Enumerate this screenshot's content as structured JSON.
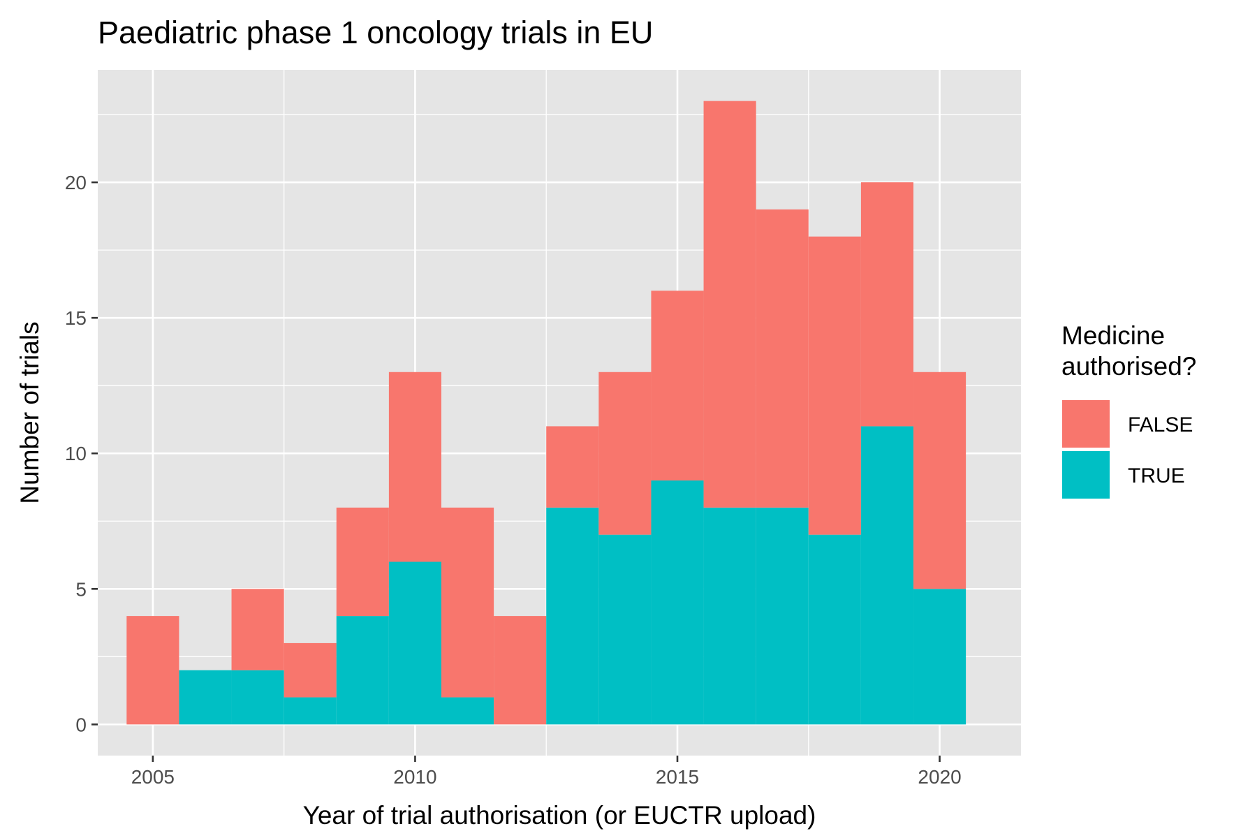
{
  "chart_data": {
    "type": "bar",
    "stacked": true,
    "title": "Paediatric phase 1 oncology trials in EU",
    "xlabel": "Year of trial authorisation (or EUCTR upload)",
    "ylabel": "Number of trials",
    "x": [
      2005,
      2006,
      2007,
      2008,
      2009,
      2010,
      2011,
      2012,
      2013,
      2014,
      2015,
      2016,
      2017,
      2018,
      2019,
      2020
    ],
    "series": [
      {
        "name": "FALSE",
        "color": "#F8766D",
        "values": [
          4,
          0,
          3,
          2,
          4,
          7,
          7,
          4,
          3,
          6,
          7,
          15,
          11,
          11,
          9,
          8
        ]
      },
      {
        "name": "TRUE",
        "color": "#00BFC4",
        "values": [
          0,
          2,
          2,
          1,
          4,
          6,
          1,
          0,
          8,
          7,
          9,
          8,
          8,
          7,
          11,
          5
        ]
      }
    ],
    "xlim": [
      2003.95,
      2021.55
    ],
    "ylim": [
      -1.15,
      24.15
    ],
    "x_ticks": [
      "2005",
      "2010",
      "2015",
      "2020"
    ],
    "y_ticks": [
      "0",
      "5",
      "10",
      "15",
      "20"
    ],
    "grid": true,
    "legend": {
      "title": "Medicine authorised?",
      "title_lines": [
        "Medicine",
        "authorised?"
      ],
      "placement": "right"
    },
    "panel_background": "#E5E5E5",
    "grid_color": "#FFFFFF"
  }
}
